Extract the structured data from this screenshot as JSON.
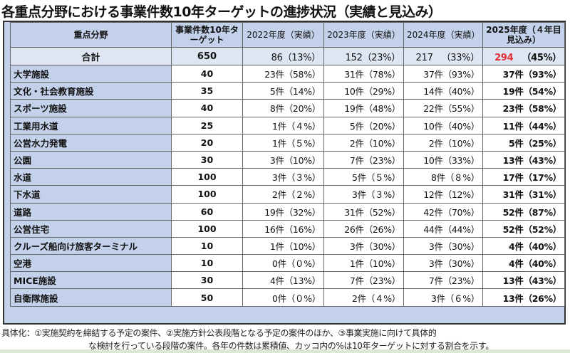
{
  "title": "各重点分野における事業件数10年ターゲットの進捗状況（実績と見込み）",
  "header": {
    "field": "重点分野",
    "target": "事業件数10年ターゲット",
    "y2022": "2022年度（実績）",
    "y2023": "2023年度（実績）",
    "y2024": "2024年度（実績）",
    "y2025": "2025年度（４年目見込み）"
  },
  "total": {
    "name": "合計",
    "target": "650",
    "y2022": [
      "86",
      "（13%）"
    ],
    "y2023": [
      "152",
      "（23%）"
    ],
    "y2024": [
      "217",
      "（33%）"
    ],
    "y2025": [
      "294",
      "（45%）"
    ]
  },
  "rows": [
    {
      "name": "大学施設",
      "target": "40",
      "y2022": "23件（58%）",
      "y2023": "31件（78%）",
      "y2024": "37件（93%）",
      "y2025": "37件（93%）"
    },
    {
      "name": "文化・社会教育施設",
      "target": "35",
      "y2022": "5件（14%）",
      "y2023": "10件（29%）",
      "y2024": "14件（40%）",
      "y2025": "19件（54%）"
    },
    {
      "name": "スポーツ施設",
      "target": "40",
      "y2022": "8件（20%）",
      "y2023": "19件（48%）",
      "y2024": "22件（55%）",
      "y2025": "23件（58%）"
    },
    {
      "name": "工業用水道",
      "target": "25",
      "y2022": "1件（４%）",
      "y2023": "5件（20%）",
      "y2024": "10件（40%）",
      "y2025": "11件（44%）"
    },
    {
      "name": "公営水力発電",
      "target": "20",
      "y2022": "1件（５%）",
      "y2023": "2件（10%）",
      "y2024": "2件（10%）",
      "y2025": "5件（25%）"
    },
    {
      "name": "公園",
      "target": "30",
      "y2022": "3件（10%）",
      "y2023": "7件（23%）",
      "y2024": "10件（33%）",
      "y2025": "13件（43%）"
    },
    {
      "name": "水道",
      "target": "100",
      "y2022": "3件（３%）",
      "y2023": "5件（５%）",
      "y2024": "8件（８%）",
      "y2025": "17件（17%）"
    },
    {
      "name": "下水道",
      "target": "100",
      "y2022": "2件（２%）",
      "y2023": "3件（３%）",
      "y2024": "12件（12%）",
      "y2025": "31件（31%）"
    },
    {
      "name": "道路",
      "target": "60",
      "y2022": "19件（32%）",
      "y2023": "31件（52%）",
      "y2024": "42件（70%）",
      "y2025": "52件（87%）"
    },
    {
      "name": "公営住宅",
      "target": "100",
      "y2022": "16件（16%）",
      "y2023": "26件（26%）",
      "y2024": "44件（44%）",
      "y2025": "52件（52%）"
    },
    {
      "name": "クルーズ船向け旅客ターミナル",
      "target": "10",
      "y2022": "1件（10%）",
      "y2023": "3件（30%）",
      "y2024": "3件（30%）",
      "y2025": "4件（40%）"
    },
    {
      "name": "空港",
      "target": "10",
      "y2022": "0件（０%）",
      "y2023": "1件（10%）",
      "y2024": "3件（30%）",
      "y2025": "4件（40%）"
    },
    {
      "name": "MICE施設",
      "target": "30",
      "y2022": "4件（13%）",
      "y2023": "7件（23%）",
      "y2024": "7件（23%）",
      "y2025": "13件（43%）"
    },
    {
      "name": "自衛隊施設",
      "target": "50",
      "y2022": "0件（０%）",
      "y2023": "2件（４%）",
      "y2024": "3件（６%）",
      "y2025": "13件（26%）"
    }
  ],
  "footnote": {
    "line1": "具体化：①実施契約を締結する予定の案件、②実施方針公表段階となる予定の案件のほか、③事業実施に向けて具体的",
    "line2": "な検討を行っている段階の案件。各年の件数は累積値、カッコ内の%は10年ターゲットに対する割合を示す。"
  },
  "colors": {
    "header_bg": "#c3d1ea",
    "highlight": "#e0303a"
  }
}
